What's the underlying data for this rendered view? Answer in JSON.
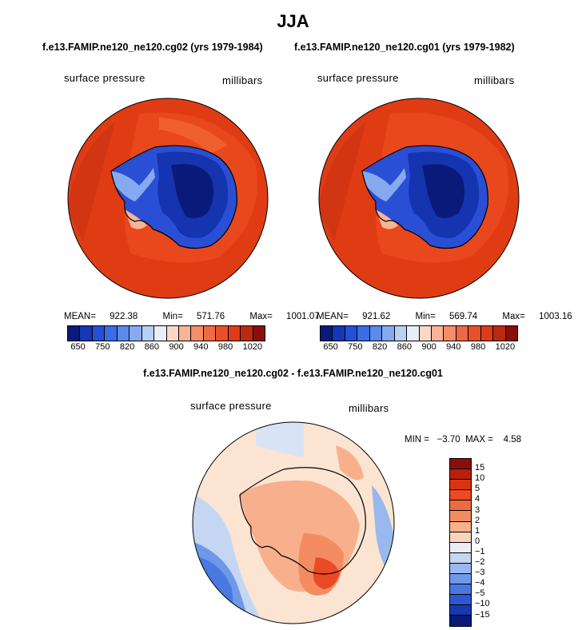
{
  "season": "JJA",
  "panels": [
    {
      "title": "f.e13.FAMIP.ne120_ne120.cg02 (yrs 1979-1984)",
      "variable": "surface pressure",
      "units": "millibars",
      "stats": {
        "mean_label": "MEAN=",
        "mean": "922.38",
        "min_label": "Min=",
        "min": "571.76",
        "max_label": "Max=",
        "max": "1001.07"
      }
    },
    {
      "title": "f.e13.FAMIP.ne120_ne120.cg01 (yrs 1979-1982)",
      "variable": "surface pressure",
      "units": "millibars",
      "stats": {
        "mean_label": "MEAN=",
        "mean": "921.62",
        "min_label": "Min=",
        "min": "569.74",
        "max_label": "Max=",
        "max": "1003.16"
      }
    }
  ],
  "diff_panel": {
    "title": "f.e13.FAMIP.ne120_ne120.cg02 - f.e13.FAMIP.ne120_ne120.cg01",
    "variable": "surface pressure",
    "units": "millibars",
    "minmax_text": "MIN =   −3.70  MAX =    4.58"
  },
  "abs_colorbar": {
    "colors": [
      "#0a1a7a",
      "#1437b4",
      "#2450d8",
      "#3a6ce4",
      "#5a8aea",
      "#86aaf0",
      "#b8cff6",
      "#e8eef8",
      "#fbd8c6",
      "#f8b497",
      "#f48d6a",
      "#ee6a45",
      "#e8502a",
      "#de3c18",
      "#bb2a10",
      "#8a0f08"
    ],
    "tick_labels": [
      "650",
      "750",
      "820",
      "860",
      "900",
      "940",
      "980",
      "1020"
    ]
  },
  "diff_colorbar": {
    "colors": [
      "#8a0f08",
      "#b8200c",
      "#d83414",
      "#ea4a24",
      "#f06a40",
      "#f48c62",
      "#f8b08c",
      "#fbd4bc",
      "#eaeef4",
      "#c4d6f2",
      "#98b8ee",
      "#6e98e8",
      "#4a78e0",
      "#2c58d4",
      "#1838b0",
      "#0a1a7a"
    ],
    "tick_labels": [
      "15",
      "10",
      "5",
      "4",
      "3",
      "2",
      "1",
      "0",
      "−1",
      "−2",
      "−3",
      "−4",
      "−5",
      "−10",
      "−15"
    ]
  }
}
